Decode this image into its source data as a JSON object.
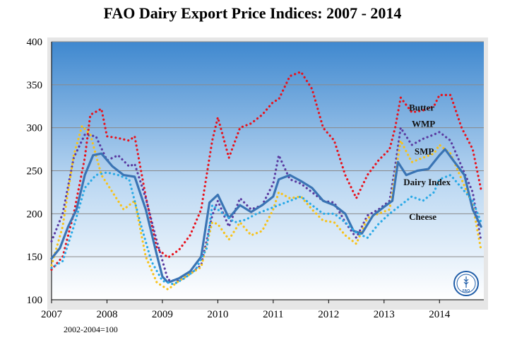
{
  "title": "FAO Dairy Export Price Indices: 2007 - 2014",
  "base_note": "2002-2004=100",
  "logo": {
    "text": "FAO",
    "icon": "fao-logo"
  },
  "colors": {
    "plot_bg_top": "#3f88cf",
    "plot_bg_bottom": "#ffffff",
    "butter": "#e8121c",
    "wmp": "#5a3aa0",
    "smp": "#f7c21a",
    "dairy_index": "#3a74b4",
    "cheese": "#29a9e6"
  },
  "chart_data": {
    "type": "line",
    "title": "FAO Dairy Export Price Indices: 2007 - 2014",
    "xlabel": "",
    "ylabel": "",
    "xlim": [
      2007,
      2014.8
    ],
    "ylim": [
      100,
      400
    ],
    "x_ticks": [
      "2007",
      "2008",
      "2009",
      "2010",
      "2011",
      "2012",
      "2013",
      "2014"
    ],
    "y_ticks": [
      "100",
      "150",
      "200",
      "250",
      "300",
      "350",
      "400"
    ],
    "grid": "horizontal",
    "legend": "inline-labels",
    "series": [
      {
        "name": "Butter",
        "style": "dotted",
        "x": [
          2007.0,
          2007.2,
          2007.4,
          2007.6,
          2007.7,
          2007.9,
          2008.0,
          2008.2,
          2008.4,
          2008.5,
          2008.7,
          2008.9,
          2009.1,
          2009.3,
          2009.5,
          2009.7,
          2009.9,
          2010.0,
          2010.2,
          2010.4,
          2010.6,
          2010.8,
          2011.0,
          2011.1,
          2011.3,
          2011.5,
          2011.7,
          2011.9,
          2012.1,
          2012.3,
          2012.5,
          2012.7,
          2012.9,
          2013.1,
          2013.2,
          2013.3,
          2013.5,
          2013.7,
          2013.9,
          2014.0,
          2014.2,
          2014.4,
          2014.6,
          2014.75
        ],
        "values": [
          135,
          150,
          200,
          265,
          315,
          322,
          290,
          288,
          285,
          290,
          220,
          160,
          149,
          158,
          175,
          205,
          285,
          312,
          265,
          300,
          305,
          315,
          330,
          333,
          360,
          365,
          345,
          300,
          285,
          245,
          218,
          245,
          262,
          275,
          300,
          335,
          318,
          320,
          325,
          338,
          338,
          300,
          275,
          228
        ]
      },
      {
        "name": "WMP",
        "style": "dotted",
        "x": [
          2007.0,
          2007.2,
          2007.4,
          2007.6,
          2007.8,
          2008.0,
          2008.2,
          2008.4,
          2008.5,
          2008.7,
          2008.9,
          2009.1,
          2009.3,
          2009.5,
          2009.7,
          2009.9,
          2010.0,
          2010.2,
          2010.4,
          2010.6,
          2010.8,
          2011.0,
          2011.1,
          2011.3,
          2011.5,
          2011.7,
          2011.9,
          2012.1,
          2012.3,
          2012.5,
          2012.7,
          2012.9,
          2013.1,
          2013.2,
          2013.3,
          2013.5,
          2013.7,
          2013.9,
          2014.0,
          2014.2,
          2014.4,
          2014.6,
          2014.75
        ],
        "values": [
          168,
          200,
          265,
          292,
          290,
          262,
          268,
          255,
          258,
          218,
          168,
          123,
          122,
          130,
          140,
          198,
          215,
          185,
          218,
          205,
          210,
          235,
          268,
          240,
          235,
          225,
          215,
          213,
          190,
          172,
          198,
          205,
          215,
          255,
          300,
          280,
          287,
          292,
          295,
          285,
          255,
          225,
          168
        ]
      },
      {
        "name": "SMP",
        "style": "dotted",
        "x": [
          2007.0,
          2007.2,
          2007.4,
          2007.55,
          2007.7,
          2007.9,
          2008.1,
          2008.3,
          2008.5,
          2008.7,
          2008.9,
          2009.1,
          2009.3,
          2009.5,
          2009.7,
          2009.9,
          2010.0,
          2010.2,
          2010.4,
          2010.6,
          2010.8,
          2011.0,
          2011.1,
          2011.3,
          2011.5,
          2011.7,
          2011.9,
          2012.1,
          2012.3,
          2012.5,
          2012.7,
          2012.9,
          2013.1,
          2013.2,
          2013.3,
          2013.5,
          2013.7,
          2013.9,
          2014.0,
          2014.2,
          2014.4,
          2014.6,
          2014.75
        ],
        "values": [
          140,
          185,
          268,
          302,
          292,
          245,
          225,
          205,
          215,
          150,
          120,
          112,
          122,
          130,
          138,
          190,
          188,
          170,
          190,
          175,
          180,
          205,
          225,
          218,
          220,
          205,
          192,
          190,
          175,
          165,
          195,
          200,
          205,
          245,
          285,
          260,
          265,
          270,
          280,
          270,
          240,
          210,
          158
        ]
      },
      {
        "name": "Dairy Index",
        "style": "solid",
        "x": [
          2007.0,
          2007.15,
          2007.3,
          2007.45,
          2007.6,
          2007.75,
          2007.9,
          2008.1,
          2008.3,
          2008.5,
          2008.7,
          2008.9,
          2009.0,
          2009.1,
          2009.3,
          2009.5,
          2009.7,
          2009.85,
          2010.0,
          2010.2,
          2010.4,
          2010.6,
          2010.8,
          2011.0,
          2011.1,
          2011.3,
          2011.5,
          2011.7,
          2011.9,
          2012.1,
          2012.3,
          2012.45,
          2012.6,
          2012.8,
          2013.0,
          2013.15,
          2013.25,
          2013.4,
          2013.6,
          2013.8,
          2014.0,
          2014.1,
          2014.25,
          2014.45,
          2014.6,
          2014.75
        ],
        "values": [
          148,
          160,
          185,
          205,
          245,
          268,
          270,
          255,
          245,
          243,
          205,
          152,
          127,
          120,
          125,
          133,
          150,
          213,
          222,
          195,
          210,
          202,
          210,
          220,
          240,
          245,
          238,
          230,
          215,
          210,
          200,
          180,
          177,
          198,
          208,
          215,
          260,
          245,
          250,
          252,
          268,
          275,
          262,
          245,
          205,
          185
        ]
      },
      {
        "name": "Cheese",
        "style": "dotted",
        "x": [
          2007.0,
          2007.2,
          2007.4,
          2007.6,
          2007.8,
          2008.0,
          2008.2,
          2008.4,
          2008.6,
          2008.8,
          2009.0,
          2009.2,
          2009.4,
          2009.6,
          2009.8,
          2009.9,
          2010.1,
          2010.3,
          2010.5,
          2010.7,
          2010.9,
          2011.1,
          2011.3,
          2011.5,
          2011.7,
          2011.9,
          2012.1,
          2012.3,
          2012.5,
          2012.7,
          2012.9,
          2013.1,
          2013.3,
          2013.5,
          2013.7,
          2013.9,
          2014.0,
          2014.2,
          2014.4,
          2014.6,
          2014.75
        ],
        "values": [
          137,
          145,
          185,
          230,
          245,
          248,
          245,
          240,
          190,
          145,
          122,
          118,
          125,
          135,
          160,
          210,
          200,
          190,
          193,
          200,
          205,
          210,
          215,
          220,
          210,
          200,
          200,
          190,
          178,
          172,
          188,
          200,
          210,
          220,
          215,
          225,
          240,
          245,
          230,
          215,
          190
        ]
      }
    ],
    "labels": [
      {
        "text": "Butter",
        "x": 2013.45,
        "y": 320
      },
      {
        "text": "WMP",
        "x": 2013.5,
        "y": 301
      },
      {
        "text": "SMP",
        "x": 2013.55,
        "y": 269
      },
      {
        "text": "Dairy  Index",
        "x": 2013.35,
        "y": 233
      },
      {
        "text": "Cheese",
        "x": 2013.45,
        "y": 193
      }
    ]
  }
}
